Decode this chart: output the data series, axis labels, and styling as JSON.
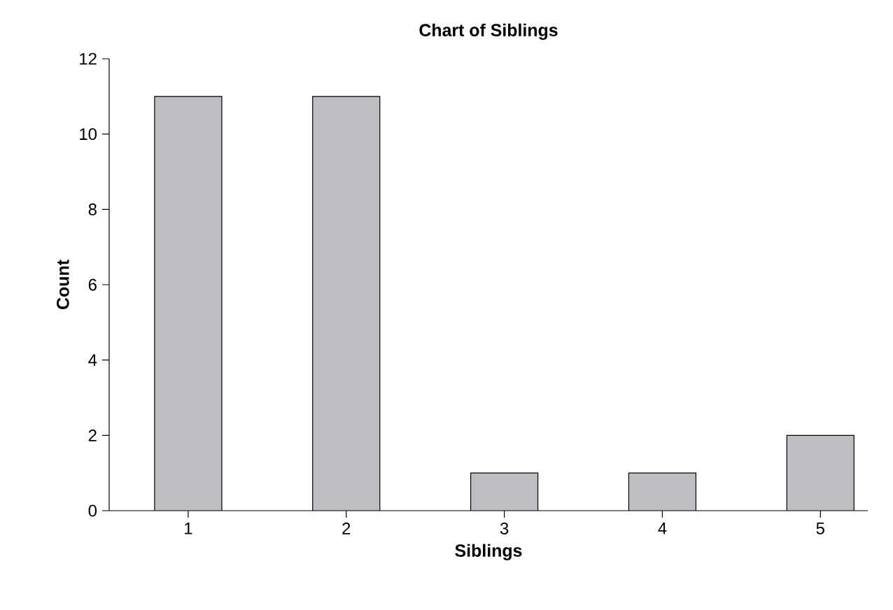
{
  "chart_data": {
    "type": "bar",
    "title": "Chart of Siblings",
    "xlabel": "Siblings",
    "ylabel": "Count",
    "categories": [
      "1",
      "2",
      "3",
      "4",
      "5"
    ],
    "values": [
      11,
      11,
      1,
      1,
      2
    ],
    "color": "#bebec3",
    "ylim": [
      0,
      12
    ],
    "yticks": [
      0,
      2,
      4,
      6,
      8,
      10,
      12
    ]
  }
}
